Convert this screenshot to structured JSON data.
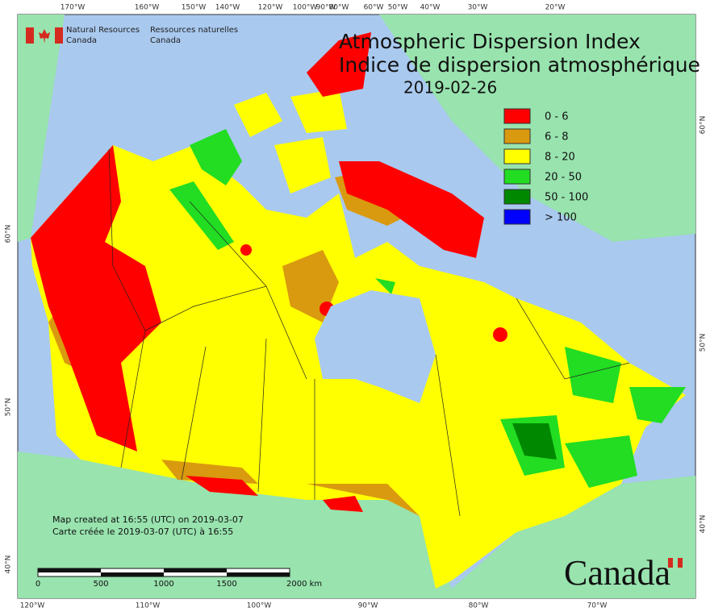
{
  "header": {
    "agency_en": [
      "Natural Resources",
      "Canada"
    ],
    "agency_fr": [
      "Ressources naturelles",
      "Canada"
    ],
    "title": [
      "Atmospheric Dispersion Index",
      "Indice de dispersion atmosphérique"
    ],
    "date": "2019-02-26"
  },
  "legend": {
    "items": [
      {
        "label": "0 - 6",
        "color": "#ff0000"
      },
      {
        "label": "6 - 8",
        "color": "#d99a0f"
      },
      {
        "label": "8 - 20",
        "color": "#ffff00"
      },
      {
        "label": "20 - 50",
        "color": "#22dd22"
      },
      {
        "label": "50 - 100",
        "color": "#008800"
      },
      {
        "label": "> 100",
        "color": "#0000ff"
      }
    ]
  },
  "graticule": {
    "top": [
      "170°W",
      "160°W",
      "150°W",
      "140°W",
      "120°W",
      "100°W",
      "90°W",
      "80°W",
      "60°W",
      "50°W",
      "40°W",
      "30°W",
      "20°W"
    ],
    "bottom": [
      "120°W",
      "110°W",
      "100°W",
      "90°W",
      "80°W",
      "70°W"
    ],
    "left": [
      "60°N",
      "50°N",
      "40°N"
    ],
    "right": [
      "60°N",
      "50°N",
      "40°N"
    ]
  },
  "credits": [
    "Map created at 16:55 (UTC) on 2019-03-07",
    "Carte créée le 2019-03-07 (UTC) à 16:55"
  ],
  "scale": {
    "labels": [
      "0",
      "500",
      "1000",
      "1500",
      "2000 km"
    ]
  },
  "wordmark": "Canada"
}
